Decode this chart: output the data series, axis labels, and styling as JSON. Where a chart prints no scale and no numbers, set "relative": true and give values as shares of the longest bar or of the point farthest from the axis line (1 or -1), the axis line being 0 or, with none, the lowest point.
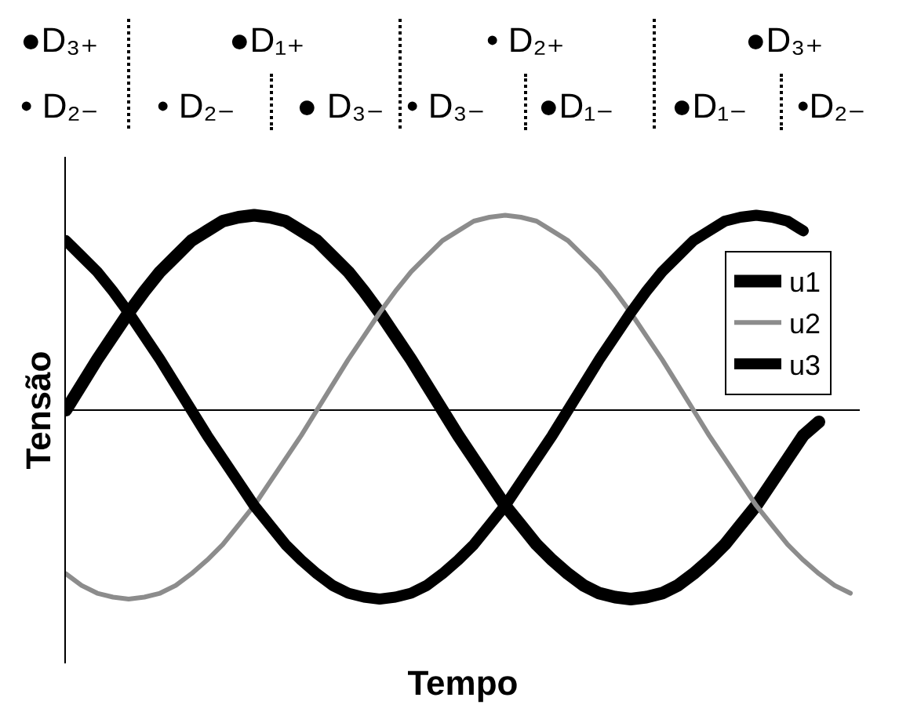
{
  "chart_data": {
    "type": "line",
    "relative": true,
    "xlabel": "Tempo",
    "ylabel": "Tensão",
    "legend": "top right",
    "marker": "none",
    "line_style": "solid",
    "categories": [
      null,
      null,
      null,
      null,
      null,
      null,
      null,
      null,
      null,
      null,
      null,
      null,
      null,
      null,
      null,
      null,
      null,
      null,
      null,
      null,
      null,
      null,
      null,
      null,
      null,
      null,
      null,
      null,
      null,
      null,
      null,
      null,
      null,
      null,
      null,
      null,
      null,
      null,
      null,
      null,
      null,
      null,
      null,
      null,
      null,
      null,
      null,
      null,
      null,
      null,
      null
    ],
    "series": [
      {
        "name": "u1",
        "color": "#000000",
        "values": [
          0,
          0.13,
          0.26,
          0.38,
          0.5,
          0.61,
          0.71,
          0.79,
          0.87,
          0.92,
          0.97,
          0.99,
          1,
          0.99,
          0.97,
          0.92,
          0.87,
          0.79,
          0.71,
          0.61,
          0.5,
          0.38,
          0.26,
          0.13,
          0,
          -0.13,
          -0.25,
          -0.37,
          -0.49,
          -0.59,
          -0.69,
          -0.77,
          -0.84,
          -0.9,
          -0.94,
          -0.96,
          -0.97,
          -0.96,
          -0.94,
          -0.9,
          -0.84,
          -0.77,
          -0.69,
          -0.59,
          -0.49,
          -0.37,
          -0.25,
          -0.13,
          -0.06,
          null,
          null
        ]
      },
      {
        "name": "u2",
        "color": "#8c8c8c",
        "values": [
          -0.84,
          -0.9,
          -0.94,
          -0.96,
          -0.97,
          -0.96,
          -0.94,
          -0.9,
          -0.84,
          -0.77,
          -0.69,
          -0.59,
          -0.49,
          -0.37,
          -0.25,
          -0.13,
          0,
          0.13,
          0.26,
          0.38,
          0.5,
          0.61,
          0.71,
          0.79,
          0.87,
          0.92,
          0.97,
          0.99,
          1,
          0.99,
          0.97,
          0.92,
          0.87,
          0.79,
          0.71,
          0.61,
          0.5,
          0.38,
          0.26,
          0.13,
          0,
          -0.13,
          -0.25,
          -0.37,
          -0.49,
          -0.59,
          -0.69,
          -0.77,
          -0.84,
          -0.9,
          -0.94
        ]
      },
      {
        "name": "u3",
        "color": "#000000",
        "values": [
          0.87,
          0.79,
          0.71,
          0.61,
          0.5,
          0.38,
          0.26,
          0.13,
          0,
          -0.13,
          -0.25,
          -0.37,
          -0.49,
          -0.59,
          -0.69,
          -0.77,
          -0.84,
          -0.9,
          -0.94,
          -0.96,
          -0.97,
          -0.96,
          -0.94,
          -0.9,
          -0.84,
          -0.77,
          -0.69,
          -0.59,
          -0.49,
          -0.37,
          -0.25,
          -0.13,
          0,
          0.13,
          0.26,
          0.38,
          0.5,
          0.61,
          0.71,
          0.79,
          0.87,
          0.92,
          0.97,
          0.99,
          1,
          0.99,
          0.97,
          0.92,
          null,
          null,
          null
        ]
      }
    ],
    "annotations": [
      "●D₃₊",
      "●D₁₊",
      "• D₂₊",
      "●D₃₊",
      "• D₂₋",
      "• D₂₋",
      "● D₃₋",
      "• D₃₋",
      "●D₁₋",
      "●D₁₋",
      "•D₂₋"
    ]
  }
}
